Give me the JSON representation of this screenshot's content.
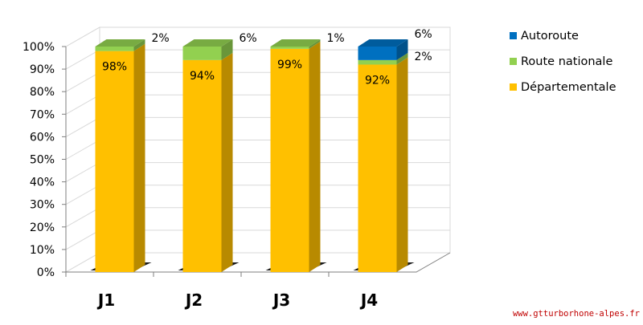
{
  "chart_data": {
    "type": "bar",
    "stacked": true,
    "percent": true,
    "three_d": true,
    "title": "",
    "xlabel": "",
    "ylabel": "",
    "categories": [
      "J1",
      "J2",
      "J3",
      "J4"
    ],
    "ylim": [
      0,
      100
    ],
    "yticks": [
      "0%",
      "10%",
      "20%",
      "30%",
      "40%",
      "50%",
      "60%",
      "70%",
      "80%",
      "90%",
      "100%"
    ],
    "grid": true,
    "legend_position": "right",
    "series": [
      {
        "name": "Départementale",
        "color": "#ffc000",
        "values": [
          98,
          94,
          99,
          92
        ],
        "labels": [
          "98%",
          "94%",
          "99%",
          "92%"
        ]
      },
      {
        "name": "Route nationale",
        "color": "#92d050",
        "values": [
          2,
          6,
          1,
          2
        ],
        "labels": [
          "2%",
          "6%",
          "1%",
          "2%"
        ]
      },
      {
        "name": "Autoroute",
        "color": "#0070c0",
        "values": [
          0,
          0,
          0,
          6
        ],
        "labels": [
          "",
          "",
          "",
          "6%"
        ]
      }
    ],
    "legend": [
      "Autoroute",
      "Route nationale",
      "Départementale"
    ]
  },
  "watermark": "www.gtturborhone-alpes.fr"
}
